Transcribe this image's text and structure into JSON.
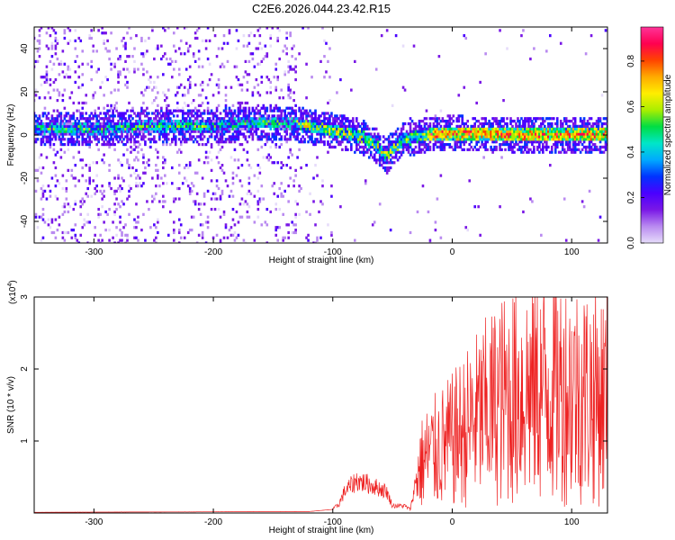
{
  "title": "C2E6.2026.044.23.42.R15",
  "chart_data": [
    {
      "type": "heatmap",
      "name": "spectrogram",
      "xlabel": "Height of straight line (km)",
      "ylabel": "Frequency (Hz)",
      "xlim": [
        -350,
        130
      ],
      "ylim": [
        -50,
        50
      ],
      "xticks": [
        -300,
        -200,
        -100,
        0,
        100
      ],
      "yticks": [
        -40,
        -20,
        0,
        20,
        40
      ],
      "grid": false,
      "colorbar": {
        "label": "Normalized spectral amplitude",
        "range": [
          0,
          0.95
        ],
        "ticks": [
          "0.0",
          "0.2",
          "0.4",
          "0.6",
          "0.8"
        ],
        "colors": [
          "#e6dcfa",
          "#b98af0",
          "#7a18e6",
          "#4a00ff",
          "#0033ff",
          "#00aaff",
          "#00e6c8",
          "#00dd44",
          "#aaee00",
          "#ffee00",
          "#ffaa00",
          "#ff4400",
          "#ff0050",
          "#ff3399"
        ]
      },
      "ridge": {
        "x": [
          -350,
          -300,
          -250,
          -200,
          -160,
          -130,
          -110,
          -90,
          -75,
          -65,
          -60,
          -55,
          -50,
          -40,
          -30,
          -20,
          0,
          50,
          100,
          130
        ],
        "y": [
          3,
          3,
          4,
          4,
          6,
          5,
          3,
          1,
          -1,
          -4,
          -7,
          -10,
          -6,
          -2,
          -1,
          0,
          1,
          0,
          0,
          0
        ]
      }
    },
    {
      "type": "line",
      "name": "snr",
      "xlabel": "Height of straight line (km)",
      "ylabel": "SNR (10 * v/v)",
      "multiplier_label": "(x10",
      "multiplier_exp": "4",
      "multiplier_close": ")",
      "xlim": [
        -350,
        130
      ],
      "ylim": [
        0,
        3
      ],
      "xticks": [
        -300,
        -200,
        -100,
        0,
        100
      ],
      "yticks": [
        1,
        2,
        3
      ],
      "color": "#ee2222",
      "envelope": {
        "x": [
          -350,
          -120,
          -100,
          -95,
          -90,
          -80,
          -70,
          -55,
          -50,
          -40,
          -35,
          -30,
          -25,
          -20,
          -10,
          0,
          20,
          40,
          60,
          80,
          100,
          115,
          130
        ],
        "y": [
          0.01,
          0.02,
          0.05,
          0.12,
          0.3,
          0.45,
          0.4,
          0.3,
          0.1,
          0.1,
          0.05,
          0.5,
          0.7,
          0.8,
          0.9,
          1.0,
          1.3,
          1.55,
          1.7,
          1.75,
          1.7,
          1.65,
          1.6
        ]
      }
    }
  ]
}
